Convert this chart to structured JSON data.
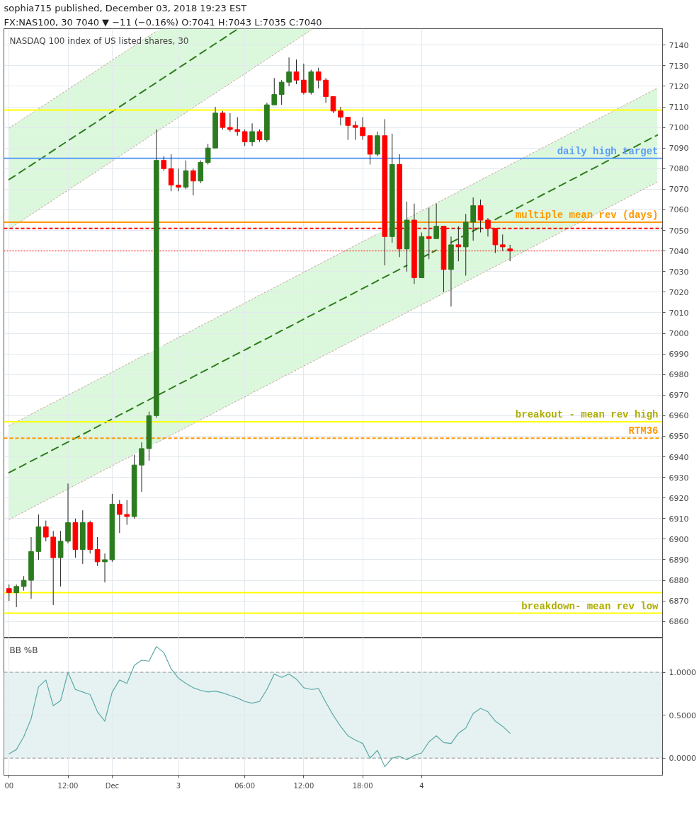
{
  "chart_data": [
    {
      "type": "candlestick",
      "title": "NASDAQ 100 index of US listed shares, 30",
      "subtitle": "FX:NAS100, 30  7040 ▼ −11 (−0.16%)  O:7041 H:7043 L:7035 C:7040",
      "annotations": [
        "sophia715 published, December 03, 2018 19:23 EST"
      ],
      "categories": [
        null,
        null,
        null,
        null,
        null,
        null,
        null,
        null,
        null,
        null,
        null,
        null,
        null,
        null,
        null,
        null,
        null,
        null,
        null,
        null,
        null,
        null,
        null,
        null,
        null,
        null,
        null,
        null,
        null,
        null,
        null,
        null,
        null,
        null,
        null,
        null,
        null,
        null,
        null,
        null,
        null,
        null,
        null,
        null,
        null,
        null,
        null,
        null,
        null,
        null,
        null,
        null,
        null,
        null,
        null,
        null,
        null,
        null,
        null,
        null,
        null,
        null,
        null,
        null,
        null,
        null,
        null,
        null,
        null,
        null,
        null,
        null,
        null,
        null,
        null,
        null,
        null,
        null,
        null,
        null,
        null,
        null,
        null,
        null,
        null,
        null,
        null,
        null,
        null
      ],
      "ohlc": [
        [
          6876,
          6878,
          6870,
          6874
        ],
        [
          6874,
          6878,
          6867,
          6877
        ],
        [
          6877,
          6882,
          6875,
          6880
        ],
        [
          6880,
          6901,
          6871,
          6894
        ],
        [
          6894,
          6912,
          6890,
          6906
        ],
        [
          6906,
          6909,
          6899,
          6901
        ],
        [
          6901,
          6904,
          6868,
          6891
        ],
        [
          6891,
          6904,
          6877,
          6899
        ],
        [
          6899,
          6927,
          6898,
          6908
        ],
        [
          6908,
          6910,
          6891,
          6895
        ],
        [
          6895,
          6914,
          6888,
          6908
        ],
        [
          6908,
          6909,
          6893,
          6895
        ],
        [
          6895,
          6901,
          6887,
          6889
        ],
        [
          6889,
          6893,
          6879,
          6890
        ],
        [
          6890,
          6922,
          6889,
          6917
        ],
        [
          6917,
          6919,
          6903,
          6912
        ],
        [
          6912,
          6919,
          6907,
          6911
        ],
        [
          6911,
          6941,
          6910,
          6936
        ],
        [
          6936,
          6947,
          6923,
          6944
        ],
        [
          6944,
          6962,
          6938,
          6960
        ],
        [
          6960,
          7099,
          6959,
          7084
        ],
        [
          7084,
          7086,
          7079,
          7080
        ],
        [
          7080,
          7087,
          7069,
          7072
        ],
        [
          7072,
          7080,
          7069,
          7071
        ],
        [
          7071,
          7084,
          7070,
          7079
        ],
        [
          7079,
          7080,
          7067,
          7074
        ],
        [
          7074,
          7084,
          7073,
          7083
        ],
        [
          7083,
          7092,
          7082,
          7090
        ],
        [
          7090,
          7110,
          7090,
          7107
        ],
        [
          7107,
          7108,
          7099,
          7100
        ],
        [
          7100,
          7107,
          7098,
          7099
        ],
        [
          7099,
          7105,
          7096,
          7098
        ],
        [
          7098,
          7099,
          7091,
          7093
        ],
        [
          7093,
          7102,
          7091,
          7098
        ],
        [
          7098,
          7099,
          7093,
          7094
        ],
        [
          7094,
          7112,
          7093,
          7111
        ],
        [
          7111,
          7124,
          7111,
          7116
        ],
        [
          7116,
          7123,
          7111,
          7122
        ],
        [
          7122,
          7134,
          7120,
          7127
        ],
        [
          7127,
          7133,
          7121,
          7123
        ],
        [
          7123,
          7131,
          7116,
          7117
        ],
        [
          7117,
          7128,
          7116,
          7127
        ],
        [
          7127,
          7129,
          7119,
          7123
        ],
        [
          7123,
          7124,
          7112,
          7115
        ],
        [
          7115,
          7115,
          7107,
          7108
        ],
        [
          7108,
          7110,
          7101,
          7105
        ],
        [
          7105,
          7105,
          7094,
          7101
        ],
        [
          7101,
          7103,
          7094,
          7100
        ],
        [
          7100,
          7105,
          7094,
          7096
        ],
        [
          7096,
          7096,
          7082,
          7087
        ],
        [
          7087,
          7098,
          7086,
          7096
        ],
        [
          7096,
          7104,
          7033,
          7047
        ],
        [
          7047,
          7097,
          7044,
          7082
        ],
        [
          7082,
          7087,
          7037,
          7041
        ],
        [
          7041,
          7064,
          7030,
          7055
        ],
        [
          7055,
          7063,
          7024,
          7027
        ],
        [
          7027,
          7049,
          7027,
          7047
        ],
        [
          7047,
          7061,
          7036,
          7046
        ],
        [
          7046,
          7063,
          7046,
          7052
        ],
        [
          7052,
          7052,
          7020,
          7031
        ],
        [
          7031,
          7047,
          7013,
          7043
        ],
        [
          7043,
          7052,
          7035,
          7042
        ],
        [
          7042,
          7058,
          7028,
          7054
        ],
        [
          7054,
          7066,
          7045,
          7062
        ],
        [
          7062,
          7065,
          7049,
          7055
        ],
        [
          7055,
          7056,
          7047,
          7051
        ],
        [
          7051,
          7051,
          7039,
          7043
        ],
        [
          7043,
          7048,
          7040,
          7042
        ],
        [
          7041,
          7043,
          7035,
          7040
        ],
        null,
        null,
        null,
        null,
        null,
        null,
        null,
        null,
        null,
        null,
        null,
        null,
        null,
        null,
        null,
        null,
        null,
        null,
        null,
        null
      ],
      "colors": [
        "#ff0000",
        "#2d7b20",
        "#2d7b20",
        "#2d7b20",
        "#2d7b20",
        "#ff0000",
        "#ff0000",
        "#2d7b20",
        "#2d7b20",
        "#ff0000",
        "#2d7b20",
        "#ff0000",
        "#ff0000",
        "#2d7b20",
        "#2d7b20",
        "#ff0000",
        "#ff0000",
        "#2d7b20",
        "#2d7b20",
        "#2d7b20",
        "#2d7b20",
        "#ff0000",
        "#ff0000",
        "#ff0000",
        "#2d7b20",
        "#ff0000",
        "#2d7b20",
        "#2d7b20",
        "#2d7b20",
        "#ff0000",
        "#ff0000",
        "#ff0000",
        "#ff0000",
        "#2d7b20",
        "#ff0000",
        "#2d7b20",
        "#2d7b20",
        "#2d7b20",
        "#2d7b20",
        "#ff0000",
        "#ff0000",
        "#2d7b20",
        "#ff0000",
        "#ff0000",
        "#ff0000",
        "#ff0000",
        "#ff0000",
        "#ff0000",
        "#ff0000",
        "#ff0000",
        "#2d7b20",
        "#ff0000",
        "#2d7b20",
        "#ff0000",
        "#2d7b20",
        "#ff0000",
        "#2d7b20",
        "#ff0000",
        "#2d7b20",
        "#ff0000",
        "#2d7b20",
        "#ff0000",
        "#2d7b20",
        "#2d7b20",
        "#ff0000",
        "#ff0000",
        "#ff0000",
        "#ff0000",
        "#ff0000",
        null,
        null,
        null,
        null,
        null,
        null,
        null,
        null,
        null,
        null,
        null,
        null,
        null,
        null,
        null,
        null,
        null,
        null,
        null,
        null
      ],
      "series": [
        {
          "type": "line",
          "color": "#2e7d1e",
          "line_style": "dashed",
          "values": [
            7074.7,
            7077.0,
            7079.4,
            7081.7,
            7084.1,
            7086.4,
            7088.8,
            7091.2,
            7093.5,
            7095.9,
            7098.2,
            7100.6,
            7102.9,
            7105.3,
            7107.7,
            7110.0,
            7112.4,
            7114.7,
            7117.1,
            7119.5,
            7121.8,
            7124.2,
            7126.5,
            7128.9,
            7131.2,
            7133.6,
            7136.0,
            7138.3,
            7140.7,
            7143.0,
            7145.4,
            7147.7,
            null,
            null,
            null,
            null,
            null,
            null,
            null,
            null,
            null,
            null,
            null,
            null,
            null,
            null,
            null,
            null,
            null,
            null,
            null,
            null,
            null,
            null,
            null,
            null,
            null,
            null,
            null,
            null,
            null,
            null,
            null,
            null,
            null,
            null,
            null,
            null,
            null,
            null,
            null,
            null,
            null,
            null,
            null,
            null,
            null,
            null,
            null,
            null,
            null,
            null,
            null,
            null,
            null,
            null,
            null,
            null,
            null
          ],
          "lower": [
            7050.7,
            7053.0,
            7055.4,
            7057.7,
            7060.1,
            7062.4,
            7064.8,
            7067.2,
            7069.5,
            7071.9,
            7074.2,
            7076.6,
            7078.9,
            7081.3,
            7083.7,
            7086.0,
            7088.4,
            7090.7,
            7093.1,
            7095.5,
            7097.8,
            7100.2,
            7102.5,
            7104.9,
            7107.2,
            7109.6,
            7112.0,
            7114.3,
            7116.7,
            7119.0,
            7121.4,
            7123.7,
            7126.1,
            7128.5,
            7130.8,
            7133.2,
            7135.5,
            7137.9,
            7140.3,
            7142.6,
            7145.0,
            7147.3,
            null,
            null,
            null,
            null,
            null,
            null,
            null,
            null,
            null,
            null,
            null,
            null,
            null,
            null,
            null,
            null,
            null,
            null,
            null,
            null,
            null,
            null,
            null,
            null,
            null,
            null,
            null,
            null,
            null,
            null,
            null,
            null,
            null,
            null,
            null,
            null,
            null,
            null,
            null,
            null,
            null,
            null,
            null,
            null,
            null,
            null,
            null
          ],
          "upper": [
            7099.7,
            7102.0,
            7104.4,
            7106.7,
            7109.1,
            7111.4,
            7113.8,
            7116.2,
            7118.5,
            7120.9,
            7123.2,
            7125.6,
            7127.9,
            7130.3,
            7132.7,
            7135.0,
            7137.4,
            7139.7,
            7142.1,
            7144.5,
            7146.8,
            7148,
            7148,
            7148,
            7148,
            7148,
            7148,
            7148,
            7148,
            7148,
            7148,
            7148,
            7148,
            7148,
            7148,
            7148,
            7148,
            7148,
            7148,
            7148,
            7148,
            7148,
            null,
            null,
            null,
            null,
            null,
            null,
            null,
            null,
            null,
            null,
            null,
            null,
            null,
            null,
            null,
            null,
            null,
            null,
            null,
            null,
            null,
            null,
            null,
            null,
            null,
            null,
            null,
            null,
            null,
            null,
            null,
            null,
            null,
            null,
            null,
            null,
            null,
            null,
            null,
            null,
            null,
            null,
            null,
            null,
            null,
            null,
            null
          ]
        },
        {
          "type": "line",
          "color": "#c4a19d",
          "line_style": "dotted",
          "values": [
            7050.7,
            7053.0,
            7055.4,
            7057.7,
            7060.1,
            7062.4,
            7064.8,
            7067.2,
            7069.5,
            7071.9,
            7074.2,
            7076.6,
            7078.9,
            7081.3,
            7083.7,
            7086.0,
            7088.4,
            7090.7,
            7093.1,
            7095.5,
            7097.8,
            7100.2,
            7102.5,
            7104.9,
            7107.2,
            7109.6,
            7112.0,
            7114.3,
            7116.7,
            7119.0,
            7121.4,
            7123.7,
            7126.1,
            7128.5,
            7130.8,
            7133.2,
            7135.5,
            7137.9,
            7140.3,
            7142.6,
            7145.0,
            7147.3,
            null,
            null,
            null,
            null,
            null,
            null,
            null,
            null,
            null,
            null,
            null,
            null,
            null,
            null,
            null,
            null,
            null,
            null,
            null,
            null,
            null,
            null,
            null,
            null,
            null,
            null,
            null,
            null,
            null,
            null,
            null,
            null,
            null,
            null,
            null,
            null,
            null,
            null,
            null,
            null,
            null,
            null,
            null,
            null,
            null,
            null,
            null
          ]
        },
        {
          "type": "line",
          "color": "#c4a19d",
          "line_style": "dotted",
          "values": [
            7099.7,
            7102.0,
            7104.4,
            7106.7,
            7109.1,
            7111.4,
            7113.8,
            7116.2,
            7118.5,
            7120.9,
            7123.2,
            7125.6,
            7127.9,
            7130.3,
            7132.7,
            7135.0,
            7137.4,
            7139.7,
            7142.1,
            7144.5,
            7146.8,
            null,
            null,
            null,
            null,
            null,
            null,
            null,
            null,
            null,
            null,
            null,
            null,
            null,
            null,
            null,
            null,
            null,
            null,
            null,
            null,
            null,
            null,
            null,
            null,
            null,
            null,
            null,
            null,
            null,
            null,
            null,
            null,
            null,
            null,
            null,
            null,
            null,
            null,
            null,
            null,
            null,
            null,
            null,
            null,
            null,
            null,
            null,
            null,
            null,
            null,
            null,
            null,
            null,
            null,
            null,
            null,
            null,
            null,
            null,
            null,
            null,
            null,
            null,
            null,
            null,
            null,
            null,
            null
          ]
        },
        {
          "type": "line",
          "color": "#2e7d1e",
          "line_style": "dashed",
          "values": [
            6932.3,
            6934.2,
            6936.0,
            6937.9,
            6939.8,
            6941.6,
            6943.5,
            6945.3,
            6947.2,
            6949.1,
            6950.9,
            6952.8,
            6954.7,
            6956.5,
            6958.4,
            6960.3,
            6962.1,
            6964.0,
            6965.9,
            6967.7,
            6969.6,
            6971.4,
            6973.3,
            6975.2,
            6977.0,
            6978.9,
            6980.8,
            6982.6,
            6984.5,
            6986.4,
            6988.2,
            6990.1,
            6991.9,
            6993.8,
            6995.7,
            6997.5,
            6999.4,
            7001.3,
            7003.1,
            7005.0,
            7006.9,
            7008.7,
            7010.6,
            7012.5,
            7014.3,
            7016.2,
            7018.0,
            7019.9,
            7021.8,
            7023.6,
            7025.5,
            7027.4,
            7029.2,
            7031.1,
            7033.0,
            null,
            7036.7,
            7038.5,
            7040.4,
            null,
            7044.1,
            7046.0,
            7047.9,
            7049.7,
            7051.6,
            null,
            7055.3,
            7057.2,
            7059.1,
            7060.9,
            7062.8,
            7064.6,
            7066.5,
            7068.4,
            7070.2,
            7072.1,
            7074.0,
            7075.8,
            7077.7,
            7079.6,
            7081.4,
            7083.3,
            7085.1,
            7087.0,
            7088.9,
            7090.7,
            7092.6,
            7094.5,
            7096.3
          ],
          "lower": [
            6909.5,
            6911.4,
            6913.2,
            6915.1,
            6917.0,
            6918.8,
            6920.7,
            6922.5,
            6924.4,
            6926.3,
            6928.1,
            6930.0,
            6931.9,
            6933.7,
            6935.6,
            6937.5,
            6939.3,
            6941.2,
            6943.1,
            6944.9,
            6946.8,
            6948.6,
            6950.5,
            6952.4,
            6954.2,
            6956.1,
            6958.0,
            6959.8,
            6961.7,
            6963.6,
            6965.4,
            6967.3,
            6969.1,
            6971.0,
            6972.9,
            6974.7,
            6976.6,
            6978.5,
            6980.3,
            6982.2,
            6984.1,
            6985.9,
            6987.8,
            6989.7,
            6991.5,
            6993.4,
            6995.2,
            6997.1,
            6999.0,
            7000.8,
            7002.7,
            7004.6,
            7006.4,
            7008.3,
            7010.2,
            7012.0,
            7013.9,
            7015.7,
            7017.6,
            7019.5,
            7021.3,
            7023.2,
            7025.1,
            7026.9,
            7028.8,
            7030.7,
            7032.5,
            7034.4,
            7036.3,
            7038.1,
            7040.0,
            7041.8,
            7043.7,
            7045.6,
            7047.4,
            7049.3,
            7051.2,
            7053.0,
            7054.9,
            7056.8,
            7058.6,
            7060.5,
            7062.3,
            7064.2,
            7066.1,
            7067.9,
            7069.8,
            7071.7,
            7073.5
          ],
          "upper": [
            6955.1,
            6957.0,
            6958.8,
            6960.7,
            6962.6,
            6964.4,
            6966.3,
            6968.1,
            6970.0,
            6971.9,
            6973.7,
            6975.6,
            6977.5,
            6979.3,
            6981.2,
            6983.1,
            6984.9,
            6986.8,
            6988.7,
            6990.5,
            6992.4,
            6994.2,
            6996.1,
            6998.0,
            6999.8,
            7001.7,
            7003.6,
            7005.4,
            7007.3,
            7009.2,
            7011.0,
            7012.9,
            7014.7,
            7016.6,
            7018.5,
            7020.3,
            7022.2,
            7024.1,
            7025.9,
            7027.8,
            7029.7,
            7031.5,
            7033.4,
            7035.3,
            7037.1,
            7039.0,
            7040.8,
            7042.7,
            7044.6,
            7046.4,
            7048.3,
            7050.2,
            7052.0,
            7053.9,
            7055.8,
            7057.6,
            7059.5,
            7061.3,
            7063.2,
            7065.1,
            7066.9,
            7068.8,
            7070.7,
            7072.5,
            7074.4,
            7076.3,
            7078.1,
            7080.0,
            7081.9,
            7083.7,
            7085.6,
            7087.4,
            7089.3,
            7091.2,
            7093.0,
            7094.9,
            7096.8,
            7098.6,
            7100.5,
            7102.4,
            7104.2,
            7106.1,
            7107.9,
            7109.8,
            7111.7,
            7113.5,
            7115.4,
            7117.3,
            7119.1
          ]
        },
        {
          "type": "line",
          "color": "#c4a19d",
          "line_style": "dotted",
          "values": [
            6909.5,
            6911.4,
            6913.2,
            6915.1,
            6917.0,
            6918.8,
            6920.7,
            6922.5,
            6924.4,
            6926.3,
            6928.1,
            6930.0,
            6931.9,
            6933.7,
            6935.6,
            6937.5,
            6939.3,
            6941.2,
            null,
            null,
            6946.8,
            6948.6,
            6950.5,
            6952.4,
            6954.2,
            6956.1,
            6958.0,
            6959.8,
            6961.7,
            6963.6,
            6965.4,
            6967.3,
            6969.1,
            6971.0,
            6972.9,
            6974.7,
            6976.6,
            6978.5,
            6980.3,
            6982.2,
            6984.1,
            6985.9,
            6987.8,
            6989.7,
            6991.5,
            6993.4,
            6995.2,
            6997.1,
            6999.0,
            7000.8,
            7002.7,
            7004.6,
            7006.4,
            7008.3,
            7010.2,
            7012.0,
            7013.9,
            7015.7,
            7017.6,
            7019.5,
            7021.3,
            7023.2,
            7025.1,
            7026.9,
            7028.8,
            7030.7,
            7032.5,
            7034.4,
            7036.3,
            7038.1,
            7040.0,
            7041.8,
            7043.7,
            7045.6,
            7047.4,
            7049.3,
            7051.2,
            7053.0,
            7054.9,
            7056.8,
            7058.6,
            7060.5,
            7062.3,
            7064.2,
            7066.1,
            7067.9,
            7069.8,
            7071.7,
            7073.5
          ]
        },
        {
          "type": "line",
          "color": "#c4a19d",
          "line_style": "dotted",
          "values": [
            6955.1,
            6957.0,
            6958.8,
            6960.7,
            6962.6,
            6964.4,
            6966.3,
            6968.1,
            6970.0,
            6971.9,
            6973.7,
            6975.6,
            6977.5,
            6979.3,
            6981.2,
            6983.1,
            6984.9,
            6986.8,
            6988.7,
            6990.5,
            null,
            6994.2,
            6996.1,
            6998.0,
            6999.8,
            7001.7,
            7003.6,
            7005.4,
            7007.3,
            7009.2,
            7011.0,
            7012.9,
            7014.7,
            7016.6,
            7018.5,
            7020.3,
            7022.2,
            7024.1,
            7025.9,
            7027.8,
            7029.7,
            7031.5,
            7033.4,
            7035.3,
            7037.1,
            7039.0,
            7040.8,
            7042.7,
            7044.6,
            7046.4,
            7048.3,
            null,
            null,
            null,
            7055.8,
            7057.6,
            7059.5,
            7061.3,
            7063.2,
            7065.1,
            7066.9,
            7068.8,
            7070.7,
            7072.5,
            7074.4,
            7076.3,
            7078.1,
            7080.0,
            7081.9,
            7083.7,
            7085.6,
            7087.4,
            7089.3,
            7091.2,
            7093.0,
            7094.9,
            7096.8,
            7098.6,
            7100.5,
            7102.4,
            7104.2,
            7106.1,
            7107.9,
            7109.8,
            7111.7,
            7113.5,
            7115.4,
            7117.3,
            7119.1
          ]
        }
      ],
      "ref_lines": [
        {
          "axis": "y",
          "value": 7108.5,
          "color": "#ffff00"
        },
        {
          "axis": "y",
          "value": 7085,
          "label": "daily high target",
          "color": "#5b9cf6"
        },
        {
          "axis": "y",
          "value": 7054,
          "label": "multiple mean rev (days)",
          "color": "#ff9800"
        },
        {
          "axis": "y",
          "value": 7051,
          "color": "#ff0000",
          "line_style": "dashed"
        },
        {
          "axis": "y",
          "value": 7040,
          "color": "#ff0000",
          "line_style": "dotted"
        },
        {
          "axis": "y",
          "value": 6957,
          "label": "breakout - mean rev high",
          "color": "#ffff00"
        },
        {
          "axis": "y",
          "value": 6949,
          "label": "RTM36",
          "color": "#ff9800",
          "line_style": "dashed"
        },
        {
          "axis": "y",
          "value": 6874,
          "color": "#ffff00"
        },
        {
          "axis": "y",
          "value": 6864,
          "label": "breakdown- mean rev low",
          "color": "#ffff00"
        }
      ],
      "ylim": [
        6852,
        7148
      ],
      "yticks": [
        6860,
        6870,
        6880,
        6890,
        6900,
        6910,
        6920,
        6930,
        6940,
        6950,
        6960,
        6970,
        6980,
        6990,
        7000,
        7010,
        7020,
        7030,
        7040,
        7050,
        7060,
        7070,
        7080,
        7090,
        7100,
        7110,
        7120,
        7130,
        7140
      ],
      "tick_labels": "y",
      "grid": true
    },
    {
      "type": "line",
      "title": "BB %B",
      "categories": [
        "00",
        null,
        null,
        null,
        null,
        null,
        null,
        null,
        "12:00",
        null,
        null,
        null,
        null,
        null,
        "Dec",
        null,
        null,
        null,
        null,
        null,
        null,
        null,
        null,
        "3",
        null,
        null,
        null,
        null,
        null,
        null,
        null,
        null,
        "06:00",
        null,
        null,
        null,
        null,
        null,
        null,
        null,
        "12:00",
        null,
        null,
        null,
        null,
        null,
        null,
        null,
        "18:00",
        null,
        null,
        null,
        null,
        null,
        null,
        null,
        "4",
        null,
        null,
        null,
        null,
        null,
        null,
        null,
        null,
        null,
        null,
        null,
        null,
        null,
        null,
        null,
        null,
        null,
        null,
        null,
        null,
        null,
        null,
        null,
        null,
        null,
        null,
        null,
        null,
        null,
        null,
        null,
        null
      ],
      "series": [
        {
          "color": "#5aa9a6",
          "values": [
            0.05,
            0.1,
            0.25,
            0.46,
            0.83,
            0.91,
            0.61,
            0.67,
            1.0,
            0.8,
            0.77,
            0.74,
            0.54,
            0.43,
            0.77,
            0.91,
            0.87,
            1.08,
            1.14,
            1.13,
            1.3,
            1.23,
            1.04,
            0.93,
            0.87,
            0.82,
            0.79,
            0.77,
            0.78,
            0.76,
            0.73,
            0.7,
            0.66,
            0.64,
            0.66,
            0.8,
            0.98,
            0.94,
            0.98,
            0.92,
            0.82,
            0.8,
            0.81,
            0.65,
            0.5,
            0.37,
            0.26,
            0.21,
            0.17,
            0.0,
            0.09,
            -0.1,
            0.0,
            0.02,
            -0.02,
            0.03,
            0.06,
            0.19,
            0.26,
            0.18,
            0.17,
            0.29,
            0.35,
            0.52,
            0.58,
            0.54,
            0.43,
            0.37,
            0.29,
            null,
            null,
            null,
            null,
            null,
            null,
            null,
            null,
            null,
            null,
            null,
            null,
            null,
            null,
            null,
            null,
            null,
            null,
            null,
            null
          ]
        }
      ],
      "bands": [
        {
          "axis": "y",
          "from": 0,
          "to": 1,
          "color": "#e6f2f2"
        }
      ],
      "ylim": [
        -0.2,
        1.4
      ],
      "yticks": [
        {
          "value": 0,
          "label": "0.0000"
        },
        {
          "value": 0.5,
          "label": "0.5000"
        },
        {
          "value": 1,
          "label": "1.0000"
        }
      ],
      "grid": true
    }
  ]
}
